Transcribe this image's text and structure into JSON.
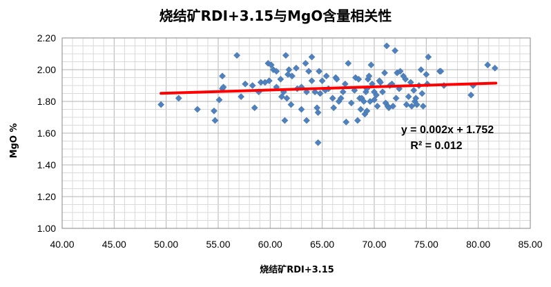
{
  "chart_data": {
    "type": "scatter",
    "title": "烧结矿RDI+3.15与MgO含量相关性",
    "xlabel": "烧结矿RDI+3.15",
    "ylabel": "MgO %",
    "xlim": [
      40,
      85
    ],
    "ylim": [
      1.0,
      2.2
    ],
    "x_ticks": [
      "40.00",
      "45.00",
      "50.00",
      "55.00",
      "60.00",
      "65.00",
      "70.00",
      "75.00",
      "80.00",
      "85.00"
    ],
    "y_ticks": [
      "1.00",
      "1.20",
      "1.40",
      "1.60",
      "1.80",
      "2.00",
      "2.20"
    ],
    "grid": true,
    "legend": "none",
    "marker_color": "#4F81BD",
    "trendline_color": "#FF0000",
    "trendline": {
      "slope": 0.002,
      "intercept": 1.752,
      "x_range": [
        49.5,
        81.7
      ]
    },
    "equation_text": "y = 0.002x + 1.752",
    "r2_text": "R² = 0.012",
    "points": [
      [
        49.5,
        1.78
      ],
      [
        51.2,
        1.82
      ],
      [
        53.0,
        1.75
      ],
      [
        54.6,
        1.74
      ],
      [
        54.7,
        1.68
      ],
      [
        55.1,
        1.81
      ],
      [
        55.4,
        1.96
      ],
      [
        55.4,
        1.88
      ],
      [
        55.5,
        1.89
      ],
      [
        56.8,
        2.09
      ],
      [
        57.2,
        1.83
      ],
      [
        57.6,
        1.91
      ],
      [
        58.3,
        1.9
      ],
      [
        58.5,
        1.76
      ],
      [
        58.9,
        1.86
      ],
      [
        59.1,
        1.92
      ],
      [
        59.5,
        1.92
      ],
      [
        59.8,
        2.04
      ],
      [
        59.9,
        1.93
      ],
      [
        60.1,
        2.03
      ],
      [
        60.3,
        2.0
      ],
      [
        60.6,
        1.99
      ],
      [
        60.6,
        1.89
      ],
      [
        61.0,
        1.94
      ],
      [
        61.1,
        1.83
      ],
      [
        61.3,
        1.86
      ],
      [
        61.4,
        1.68
      ],
      [
        61.5,
        2.09
      ],
      [
        61.6,
        1.82
      ],
      [
        61.7,
        1.97
      ],
      [
        61.8,
        2.0
      ],
      [
        62.0,
        1.78
      ],
      [
        62.1,
        1.96
      ],
      [
        62.5,
        2.01
      ],
      [
        62.6,
        1.88
      ],
      [
        63.0,
        1.75
      ],
      [
        63.0,
        1.89
      ],
      [
        63.4,
        2.04
      ],
      [
        63.5,
        1.68
      ],
      [
        63.5,
        1.86
      ],
      [
        63.7,
        1.99
      ],
      [
        64.0,
        2.08
      ],
      [
        64.0,
        1.93
      ],
      [
        64.3,
        1.86
      ],
      [
        64.5,
        1.76
      ],
      [
        64.6,
        1.73
      ],
      [
        64.6,
        1.54
      ],
      [
        64.7,
        1.99
      ],
      [
        64.8,
        1.85
      ],
      [
        65.0,
        1.93
      ],
      [
        65.3,
        1.87
      ],
      [
        65.4,
        1.96
      ],
      [
        65.6,
        1.88
      ],
      [
        66.0,
        1.82
      ],
      [
        66.1,
        1.76
      ],
      [
        66.3,
        1.95
      ],
      [
        66.4,
        1.94
      ],
      [
        66.6,
        1.8
      ],
      [
        66.8,
        1.82
      ],
      [
        67.0,
        1.86
      ],
      [
        67.2,
        1.91
      ],
      [
        67.3,
        1.67
      ],
      [
        67.5,
        2.04
      ],
      [
        67.8,
        1.79
      ],
      [
        68.1,
        1.87
      ],
      [
        68.2,
        1.95
      ],
      [
        68.4,
        1.68
      ],
      [
        68.5,
        1.94
      ],
      [
        68.6,
        1.82
      ],
      [
        68.7,
        1.75
      ],
      [
        68.8,
        1.82
      ],
      [
        69.0,
        1.8
      ],
      [
        69.1,
        1.72
      ],
      [
        69.2,
        1.86
      ],
      [
        69.3,
        1.74
      ],
      [
        69.3,
        1.88
      ],
      [
        69.4,
        1.94
      ],
      [
        69.5,
        1.96
      ],
      [
        69.6,
        1.8
      ],
      [
        69.7,
        2.03
      ],
      [
        69.8,
        1.91
      ],
      [
        70.0,
        1.86
      ],
      [
        70.0,
        1.81
      ],
      [
        70.2,
        1.84
      ],
      [
        70.3,
        1.77
      ],
      [
        70.5,
        1.93
      ],
      [
        70.6,
        1.92
      ],
      [
        70.8,
        1.86
      ],
      [
        71.0,
        1.98
      ],
      [
        71.1,
        1.79
      ],
      [
        71.2,
        2.15
      ],
      [
        71.3,
        1.77
      ],
      [
        71.4,
        1.76
      ],
      [
        71.5,
        1.9
      ],
      [
        71.7,
        1.91
      ],
      [
        71.8,
        1.77
      ],
      [
        72.0,
        2.12
      ],
      [
        72.1,
        1.82
      ],
      [
        72.2,
        1.98
      ],
      [
        72.4,
        1.88
      ],
      [
        72.5,
        1.99
      ],
      [
        72.8,
        1.96
      ],
      [
        73.0,
        1.94
      ],
      [
        73.1,
        1.78
      ],
      [
        73.3,
        1.83
      ],
      [
        73.5,
        1.92
      ],
      [
        73.6,
        1.77
      ],
      [
        73.8,
        1.87
      ],
      [
        73.9,
        1.8
      ],
      [
        74.0,
        1.82
      ],
      [
        74.1,
        1.78
      ],
      [
        74.3,
        1.9
      ],
      [
        74.5,
        2.0
      ],
      [
        74.6,
        1.85
      ],
      [
        74.7,
        1.77
      ],
      [
        75.0,
        1.97
      ],
      [
        75.1,
        1.91
      ],
      [
        75.2,
        2.08
      ],
      [
        76.3,
        1.99
      ],
      [
        76.4,
        1.99
      ],
      [
        76.7,
        1.9
      ],
      [
        79.3,
        1.84
      ],
      [
        79.5,
        1.9
      ],
      [
        80.9,
        2.03
      ],
      [
        81.6,
        2.01
      ]
    ]
  }
}
